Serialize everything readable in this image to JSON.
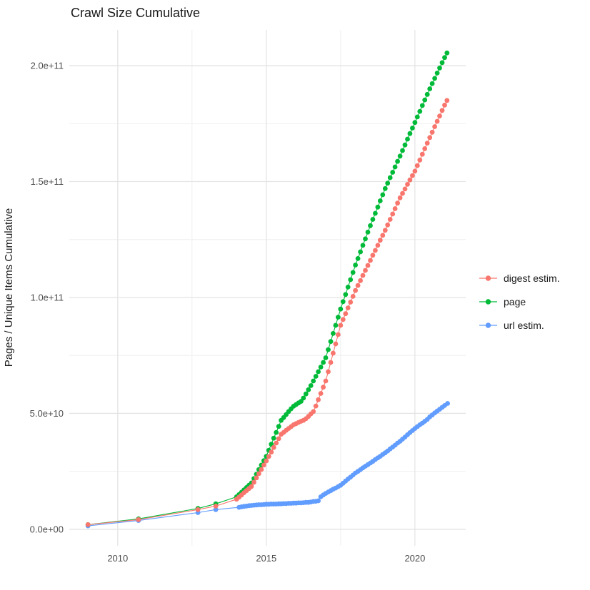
{
  "title": "Crawl Size Cumulative",
  "axes": {
    "y_title": "Pages / Unique Items Cumulative",
    "x_tick_labels": [
      "2010",
      "2015",
      "2020"
    ],
    "y_tick_labels": [
      "0.0e+00",
      "5.0e+10",
      "1.0e+11",
      "1.5e+11",
      "2.0e+11"
    ]
  },
  "legend": {
    "position": "right",
    "items": [
      {
        "label": "digest estim.",
        "color": "#F8766D"
      },
      {
        "label": "page",
        "color": "#00BA38"
      },
      {
        "label": "url estim.",
        "color": "#619CFF"
      }
    ]
  },
  "chart_data": {
    "type": "scatter",
    "style": "points connected by thin lines (ggplot-like)",
    "title": "Crawl Size Cumulative",
    "xlabel": "",
    "ylabel": "Pages / Unique Items Cumulative",
    "x_unit": "year",
    "y_unit_multiplier": 1000000000.0,
    "xlim": [
      2008.37,
      2021.71
    ],
    "ylim_e9": [
      -7.1,
      215.4
    ],
    "grid": {
      "on": true,
      "x_major": [
        2010,
        2015,
        2020
      ],
      "x_minor": [
        2012.5,
        2017.5
      ],
      "y_major_e9": [
        0,
        50,
        100,
        150,
        200
      ],
      "y_minor_e9": [
        25,
        75,
        125,
        175
      ]
    },
    "x_ticks": [
      {
        "value": 2010,
        "label": "2010"
      },
      {
        "value": 2015,
        "label": "2015"
      },
      {
        "value": 2020,
        "label": "2020"
      }
    ],
    "y_ticks": [
      {
        "value_e9": 0,
        "label": "0.0e+00"
      },
      {
        "value_e9": 50,
        "label": "5.0e+10"
      },
      {
        "value_e9": 100,
        "label": "1.0e+11"
      },
      {
        "value_e9": 150,
        "label": "1.5e+11"
      },
      {
        "value_e9": 200,
        "label": "2.0e+11"
      }
    ],
    "series": [
      {
        "name": "url estim.",
        "color": "#619CFF",
        "points_year_value_e9": [
          [
            2009.0,
            1.5
          ],
          [
            2010.7,
            3.8
          ],
          [
            2012.7,
            7.2
          ],
          [
            2013.3,
            8.5
          ],
          [
            2014.083,
            9.5
          ],
          [
            2014.167,
            9.7
          ],
          [
            2014.25,
            9.9
          ],
          [
            2014.333,
            10.0
          ],
          [
            2014.417,
            10.2
          ],
          [
            2014.5,
            10.3
          ],
          [
            2014.583,
            10.4
          ],
          [
            2014.667,
            10.5
          ],
          [
            2014.75,
            10.6
          ],
          [
            2014.833,
            10.6
          ],
          [
            2014.917,
            10.7
          ],
          [
            2015.0,
            10.8
          ],
          [
            2015.083,
            10.8
          ],
          [
            2015.167,
            10.9
          ],
          [
            2015.25,
            10.9
          ],
          [
            2015.333,
            10.9
          ],
          [
            2015.417,
            11.0
          ],
          [
            2015.5,
            11.0
          ],
          [
            2015.583,
            11.1
          ],
          [
            2015.667,
            11.1
          ],
          [
            2015.75,
            11.2
          ],
          [
            2015.833,
            11.2
          ],
          [
            2015.917,
            11.3
          ],
          [
            2016.0,
            11.3
          ],
          [
            2016.083,
            11.4
          ],
          [
            2016.167,
            11.4
          ],
          [
            2016.25,
            11.5
          ],
          [
            2016.333,
            11.6
          ],
          [
            2016.417,
            11.6
          ],
          [
            2016.5,
            11.8
          ],
          [
            2016.583,
            12.0
          ],
          [
            2016.667,
            12.1
          ],
          [
            2016.75,
            12.3
          ],
          [
            2016.833,
            14.0
          ],
          [
            2016.917,
            14.8
          ],
          [
            2017.0,
            15.5
          ],
          [
            2017.083,
            16.1
          ],
          [
            2017.167,
            16.7
          ],
          [
            2017.25,
            17.3
          ],
          [
            2017.333,
            17.8
          ],
          [
            2017.417,
            18.4
          ],
          [
            2017.5,
            19.0
          ],
          [
            2017.583,
            19.9
          ],
          [
            2017.667,
            20.8
          ],
          [
            2017.75,
            21.7
          ],
          [
            2017.833,
            22.5
          ],
          [
            2017.917,
            23.4
          ],
          [
            2018.0,
            24.3
          ],
          [
            2018.083,
            25.0
          ],
          [
            2018.167,
            25.7
          ],
          [
            2018.25,
            26.5
          ],
          [
            2018.333,
            27.2
          ],
          [
            2018.417,
            27.9
          ],
          [
            2018.5,
            28.6
          ],
          [
            2018.583,
            29.3
          ],
          [
            2018.667,
            30.1
          ],
          [
            2018.75,
            30.8
          ],
          [
            2018.833,
            31.5
          ],
          [
            2018.917,
            32.3
          ],
          [
            2019.0,
            33.0
          ],
          [
            2019.083,
            33.8
          ],
          [
            2019.167,
            34.7
          ],
          [
            2019.25,
            35.5
          ],
          [
            2019.333,
            36.3
          ],
          [
            2019.417,
            37.2
          ],
          [
            2019.5,
            38.0
          ],
          [
            2019.583,
            38.9
          ],
          [
            2019.667,
            39.8
          ],
          [
            2019.75,
            40.8
          ],
          [
            2019.833,
            41.7
          ],
          [
            2019.917,
            42.6
          ],
          [
            2020.0,
            43.5
          ],
          [
            2020.083,
            44.3
          ],
          [
            2020.167,
            45.1
          ],
          [
            2020.25,
            45.8
          ],
          [
            2020.333,
            46.6
          ],
          [
            2020.417,
            47.4
          ],
          [
            2020.5,
            48.5
          ],
          [
            2020.583,
            49.3
          ],
          [
            2020.667,
            50.2
          ],
          [
            2020.75,
            51.0
          ],
          [
            2020.833,
            51.8
          ],
          [
            2020.917,
            52.6
          ],
          [
            2021.0,
            53.4
          ],
          [
            2021.1,
            54.3
          ]
        ]
      },
      {
        "name": "page",
        "color": "#00BA38",
        "points_year_value_e9": [
          [
            2009.0,
            2.0
          ],
          [
            2010.7,
            4.5
          ],
          [
            2012.7,
            9.0
          ],
          [
            2013.3,
            11.0
          ],
          [
            2014.0,
            14.0
          ],
          [
            2014.083,
            15.0
          ],
          [
            2014.167,
            16.0
          ],
          [
            2014.25,
            17.0
          ],
          [
            2014.333,
            18.0
          ],
          [
            2014.417,
            19.0
          ],
          [
            2014.5,
            20.0
          ],
          [
            2014.583,
            21.9
          ],
          [
            2014.667,
            23.8
          ],
          [
            2014.75,
            25.8
          ],
          [
            2014.833,
            27.7
          ],
          [
            2014.917,
            29.6
          ],
          [
            2015.0,
            31.5
          ],
          [
            2015.083,
            34.1
          ],
          [
            2015.167,
            36.7
          ],
          [
            2015.25,
            39.3
          ],
          [
            2015.333,
            41.8
          ],
          [
            2015.417,
            44.4
          ],
          [
            2015.5,
            47.0
          ],
          [
            2015.583,
            48.2
          ],
          [
            2015.667,
            49.5
          ],
          [
            2015.75,
            50.8
          ],
          [
            2015.833,
            52.0
          ],
          [
            2015.917,
            53.1
          ],
          [
            2016.0,
            53.8
          ],
          [
            2016.083,
            54.5
          ],
          [
            2016.167,
            55.2
          ],
          [
            2016.25,
            56.6
          ],
          [
            2016.333,
            58.4
          ],
          [
            2016.417,
            60.2
          ],
          [
            2016.5,
            62.0
          ],
          [
            2016.583,
            64.0
          ],
          [
            2016.667,
            66.0
          ],
          [
            2016.75,
            68.0
          ],
          [
            2016.833,
            70.0
          ],
          [
            2016.917,
            72.0
          ],
          [
            2017.0,
            74.0
          ],
          [
            2017.083,
            77.5
          ],
          [
            2017.167,
            81.0
          ],
          [
            2017.25,
            84.5
          ],
          [
            2017.333,
            88.0
          ],
          [
            2017.417,
            91.5
          ],
          [
            2017.5,
            95.0
          ],
          [
            2017.583,
            98.2
          ],
          [
            2017.667,
            101.3
          ],
          [
            2017.75,
            104.5
          ],
          [
            2017.833,
            107.7
          ],
          [
            2017.917,
            110.8
          ],
          [
            2018.0,
            114.0
          ],
          [
            2018.083,
            116.8
          ],
          [
            2018.167,
            119.7
          ],
          [
            2018.25,
            122.5
          ],
          [
            2018.333,
            125.3
          ],
          [
            2018.417,
            128.2
          ],
          [
            2018.5,
            131.0
          ],
          [
            2018.583,
            133.7
          ],
          [
            2018.667,
            136.3
          ],
          [
            2018.75,
            139.0
          ],
          [
            2018.833,
            141.7
          ],
          [
            2018.917,
            144.3
          ],
          [
            2019.0,
            147.0
          ],
          [
            2019.083,
            149.3
          ],
          [
            2019.167,
            151.7
          ],
          [
            2019.25,
            154.0
          ],
          [
            2019.333,
            156.3
          ],
          [
            2019.417,
            158.7
          ],
          [
            2019.5,
            161.0
          ],
          [
            2019.583,
            163.4
          ],
          [
            2019.667,
            165.8
          ],
          [
            2019.75,
            168.3
          ],
          [
            2019.833,
            170.7
          ],
          [
            2019.917,
            173.1
          ],
          [
            2020.0,
            175.5
          ],
          [
            2020.083,
            177.9
          ],
          [
            2020.167,
            180.3
          ],
          [
            2020.25,
            182.8
          ],
          [
            2020.333,
            185.2
          ],
          [
            2020.417,
            187.6
          ],
          [
            2020.5,
            190.0
          ],
          [
            2020.583,
            192.3
          ],
          [
            2020.667,
            194.5
          ],
          [
            2020.75,
            196.8
          ],
          [
            2020.833,
            199.0
          ],
          [
            2020.917,
            201.3
          ],
          [
            2021.0,
            203.5
          ],
          [
            2021.08,
            205.5
          ]
        ]
      },
      {
        "name": "digest estim.",
        "color": "#F8766D",
        "points_year_value_e9": [
          [
            2009.0,
            2.0
          ],
          [
            2010.7,
            4.2
          ],
          [
            2012.7,
            8.5
          ],
          [
            2013.3,
            10.0
          ],
          [
            2014.0,
            13.0
          ],
          [
            2014.083,
            13.9
          ],
          [
            2014.167,
            14.8
          ],
          [
            2014.25,
            15.8
          ],
          [
            2014.333,
            16.7
          ],
          [
            2014.417,
            17.6
          ],
          [
            2014.5,
            18.5
          ],
          [
            2014.583,
            20.3
          ],
          [
            2014.667,
            22.2
          ],
          [
            2014.75,
            24.0
          ],
          [
            2014.833,
            25.8
          ],
          [
            2014.917,
            27.7
          ],
          [
            2015.0,
            29.5
          ],
          [
            2015.083,
            31.4
          ],
          [
            2015.167,
            33.3
          ],
          [
            2015.25,
            35.3
          ],
          [
            2015.333,
            37.2
          ],
          [
            2015.417,
            39.1
          ],
          [
            2015.5,
            41.0
          ],
          [
            2015.583,
            41.8
          ],
          [
            2015.667,
            42.7
          ],
          [
            2015.75,
            43.5
          ],
          [
            2015.833,
            44.3
          ],
          [
            2015.917,
            45.1
          ],
          [
            2016.0,
            45.6
          ],
          [
            2016.083,
            46.1
          ],
          [
            2016.167,
            46.6
          ],
          [
            2016.25,
            47.0
          ],
          [
            2016.333,
            47.7
          ],
          [
            2016.417,
            48.7
          ],
          [
            2016.5,
            49.8
          ],
          [
            2016.583,
            50.8
          ],
          [
            2016.667,
            53.2
          ],
          [
            2016.75,
            55.9
          ],
          [
            2016.833,
            58.6
          ],
          [
            2016.917,
            61.3
          ],
          [
            2017.0,
            64.0
          ],
          [
            2017.083,
            68.0
          ],
          [
            2017.167,
            72.0
          ],
          [
            2017.25,
            76.0
          ],
          [
            2017.333,
            80.0
          ],
          [
            2017.417,
            84.0
          ],
          [
            2017.5,
            88.0
          ],
          [
            2017.583,
            90.5
          ],
          [
            2017.667,
            93.0
          ],
          [
            2017.75,
            95.5
          ],
          [
            2017.833,
            98.0
          ],
          [
            2017.917,
            100.5
          ],
          [
            2018.0,
            103.0
          ],
          [
            2018.083,
            105.2
          ],
          [
            2018.167,
            107.3
          ],
          [
            2018.25,
            109.5
          ],
          [
            2018.333,
            111.7
          ],
          [
            2018.417,
            113.8
          ],
          [
            2018.5,
            116.0
          ],
          [
            2018.583,
            118.2
          ],
          [
            2018.667,
            120.3
          ],
          [
            2018.75,
            122.5
          ],
          [
            2018.833,
            124.7
          ],
          [
            2018.917,
            126.8
          ],
          [
            2019.0,
            129.0
          ],
          [
            2019.083,
            131.3
          ],
          [
            2019.167,
            133.7
          ],
          [
            2019.25,
            136.0
          ],
          [
            2019.333,
            138.3
          ],
          [
            2019.417,
            140.7
          ],
          [
            2019.5,
            143.0
          ],
          [
            2019.583,
            144.9
          ],
          [
            2019.667,
            146.8
          ],
          [
            2019.75,
            148.8
          ],
          [
            2019.833,
            150.7
          ],
          [
            2019.917,
            152.6
          ],
          [
            2020.0,
            154.5
          ],
          [
            2020.083,
            156.9
          ],
          [
            2020.167,
            159.3
          ],
          [
            2020.25,
            161.8
          ],
          [
            2020.333,
            164.2
          ],
          [
            2020.417,
            166.6
          ],
          [
            2020.5,
            169.0
          ],
          [
            2020.583,
            171.3
          ],
          [
            2020.667,
            173.7
          ],
          [
            2020.75,
            176.0
          ],
          [
            2020.833,
            178.3
          ],
          [
            2020.917,
            180.7
          ],
          [
            2021.0,
            183.0
          ],
          [
            2021.08,
            185.0
          ]
        ]
      }
    ],
    "colors": {
      "grid_major": "#e4e4e4",
      "grid_minor": "#eeeeee",
      "tick_text": "#4d4d4d",
      "text": "#1a1a1a",
      "background": "#ffffff"
    }
  }
}
